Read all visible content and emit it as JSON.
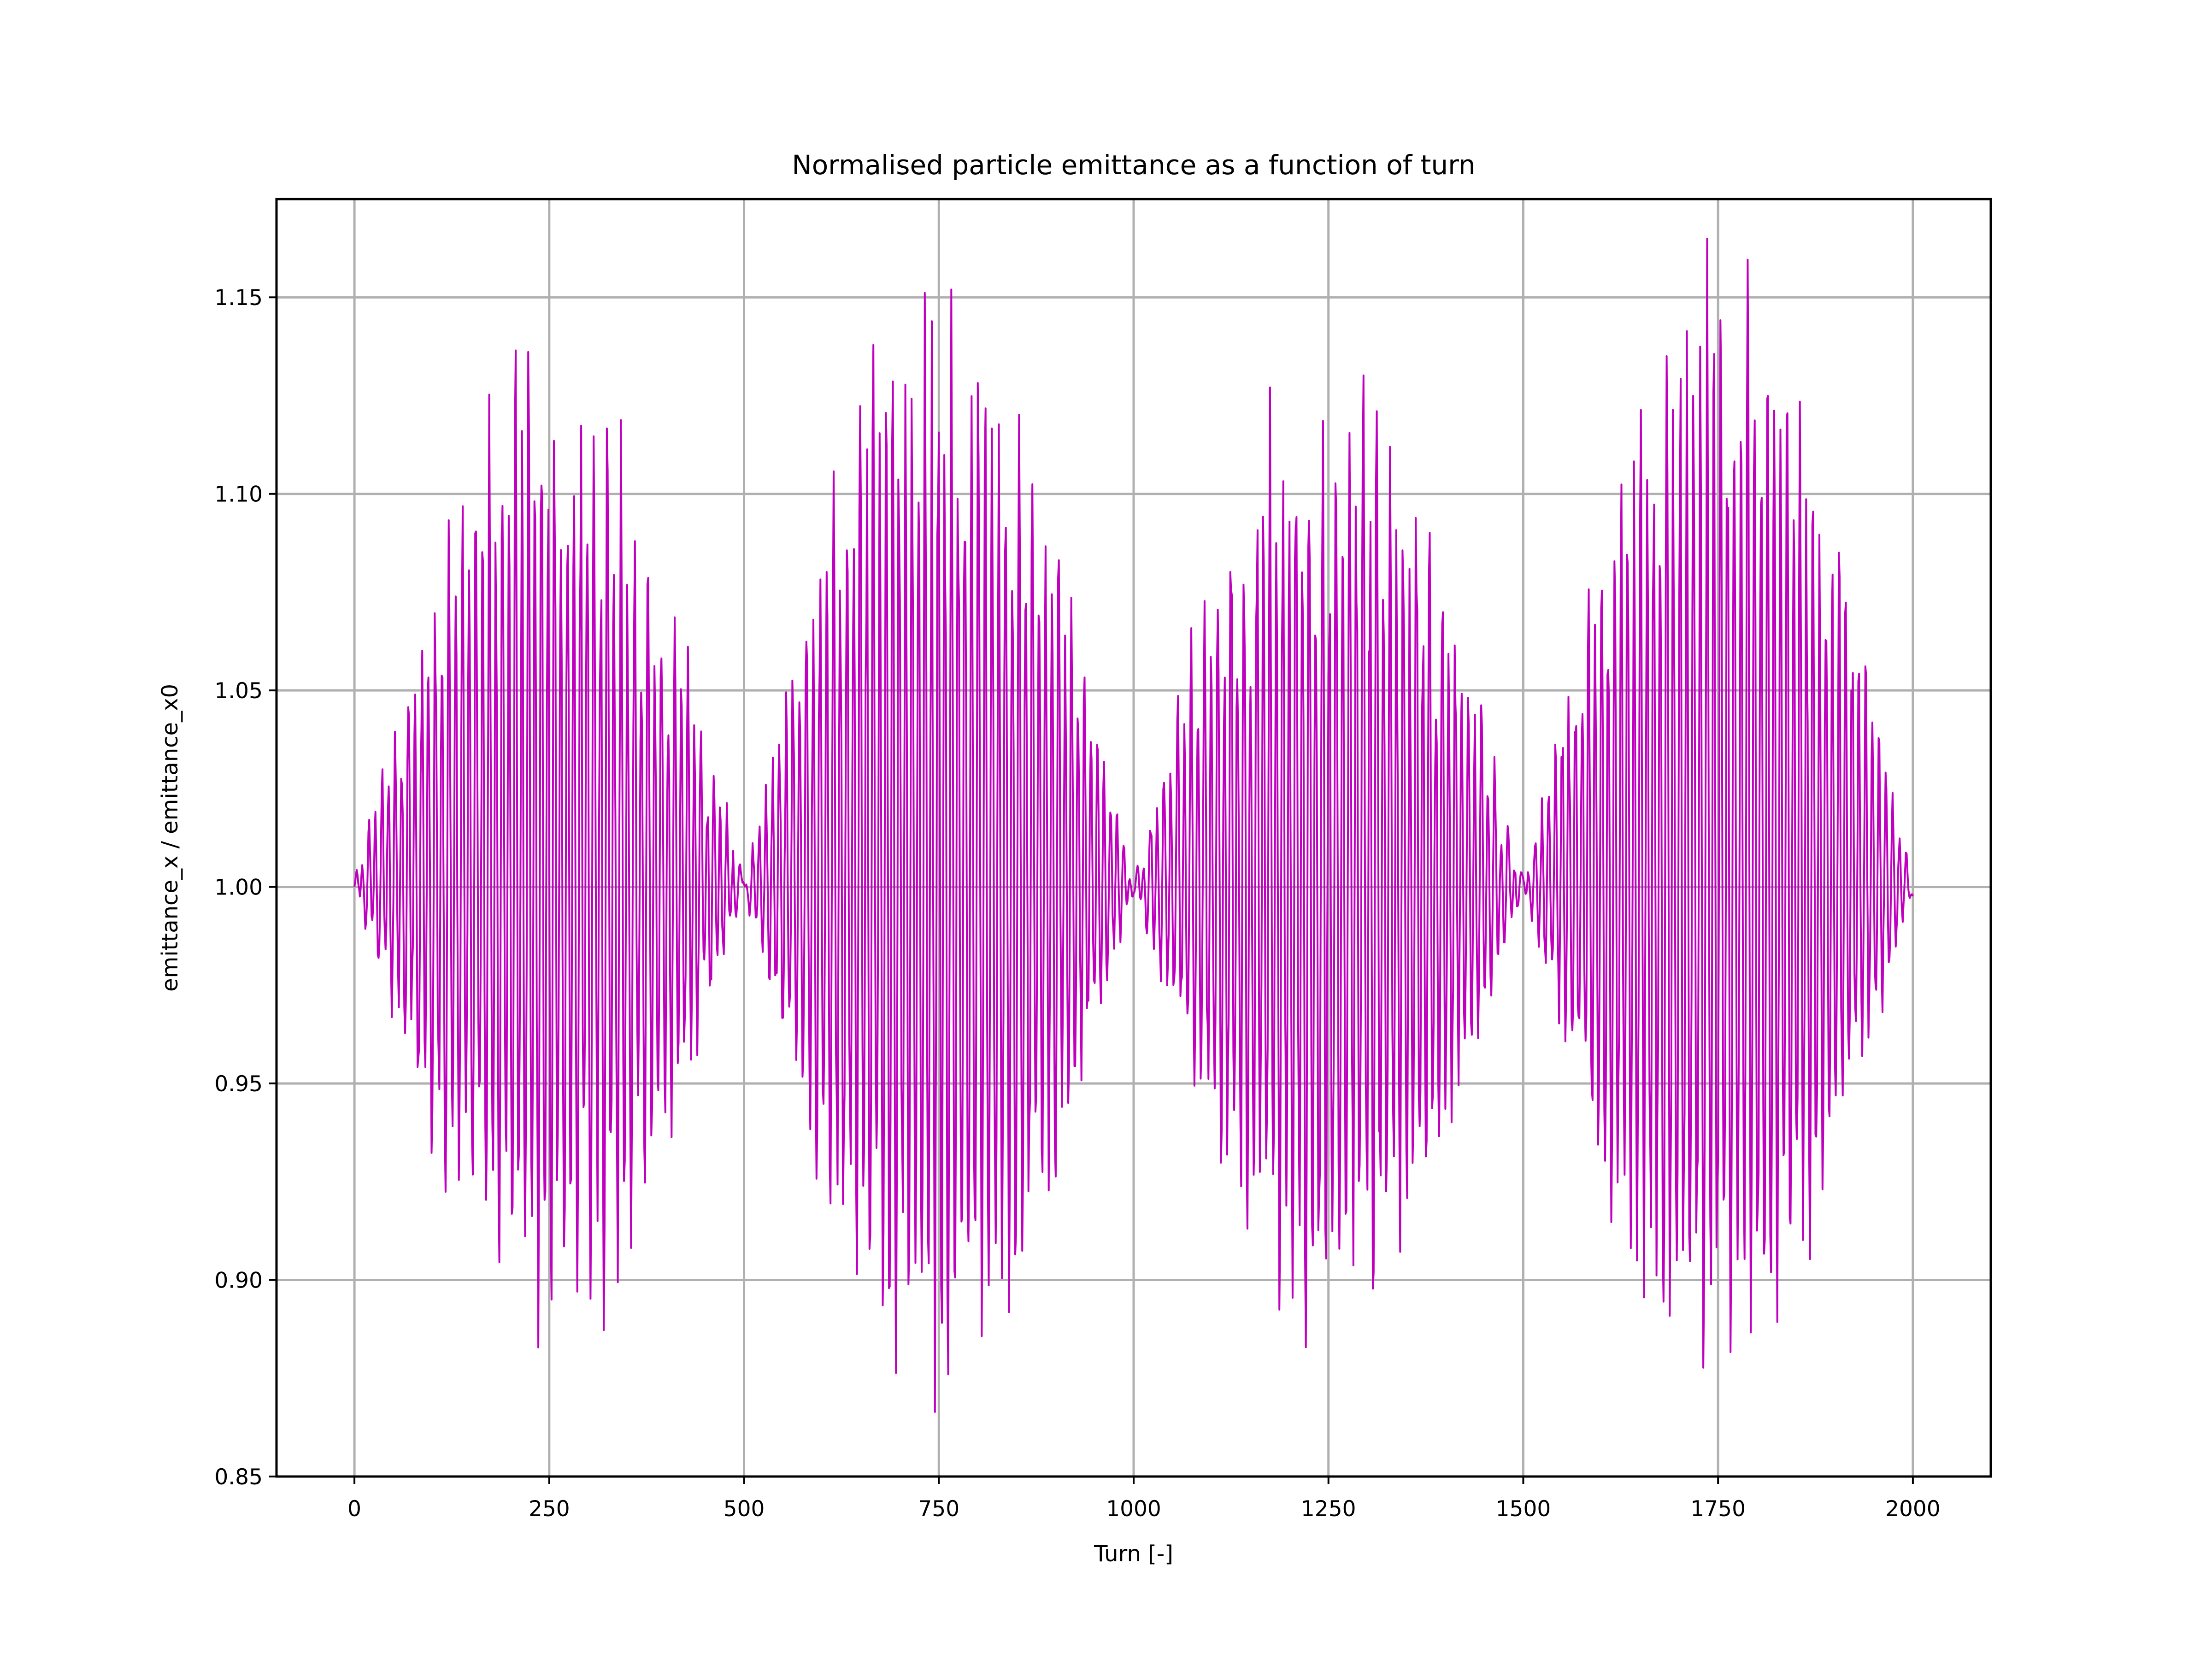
{
  "chart_data": {
    "type": "line",
    "title": "Normalised particle emittance as a function of turn",
    "xlabel": "Turn [-]",
    "ylabel": "emittance_x / emittance_x0",
    "xlim": [
      -100,
      2100
    ],
    "ylim": [
      0.85,
      1.175
    ],
    "x_ticks": [
      0,
      250,
      500,
      750,
      1000,
      1250,
      1500,
      1750,
      2000
    ],
    "y_ticks": [
      0.85,
      0.9,
      0.95,
      1.0,
      1.05,
      1.1,
      1.15
    ],
    "x_tick_labels": [
      "0",
      "250",
      "500",
      "750",
      "1000",
      "1250",
      "1500",
      "1750",
      "2000"
    ],
    "y_tick_labels": [
      "0.85",
      "0.90",
      "0.95",
      "1.00",
      "1.05",
      "1.10",
      "1.15"
    ],
    "grid": true,
    "series": [
      {
        "name": "emittance_x / emittance_x0",
        "color": "#bf00bf",
        "x_range": [
          0,
          2000
        ],
        "n_points": 2001,
        "baseline": 1.0,
        "fast_oscillation_period_turns": 8.5,
        "envelope_period_turns": 500,
        "envelope_minima_turns": [
          0,
          500,
          1000,
          1500,
          2000
        ],
        "envelope_peaks": [
          {
            "turn": 250,
            "max": 1.135,
            "min": 0.885
          },
          {
            "turn": 750,
            "max": 1.16,
            "min": 0.866
          },
          {
            "turn": 1250,
            "max": 1.135,
            "min": 0.885
          },
          {
            "turn": 1750,
            "max": 1.16,
            "min": 0.866
          }
        ]
      }
    ]
  }
}
